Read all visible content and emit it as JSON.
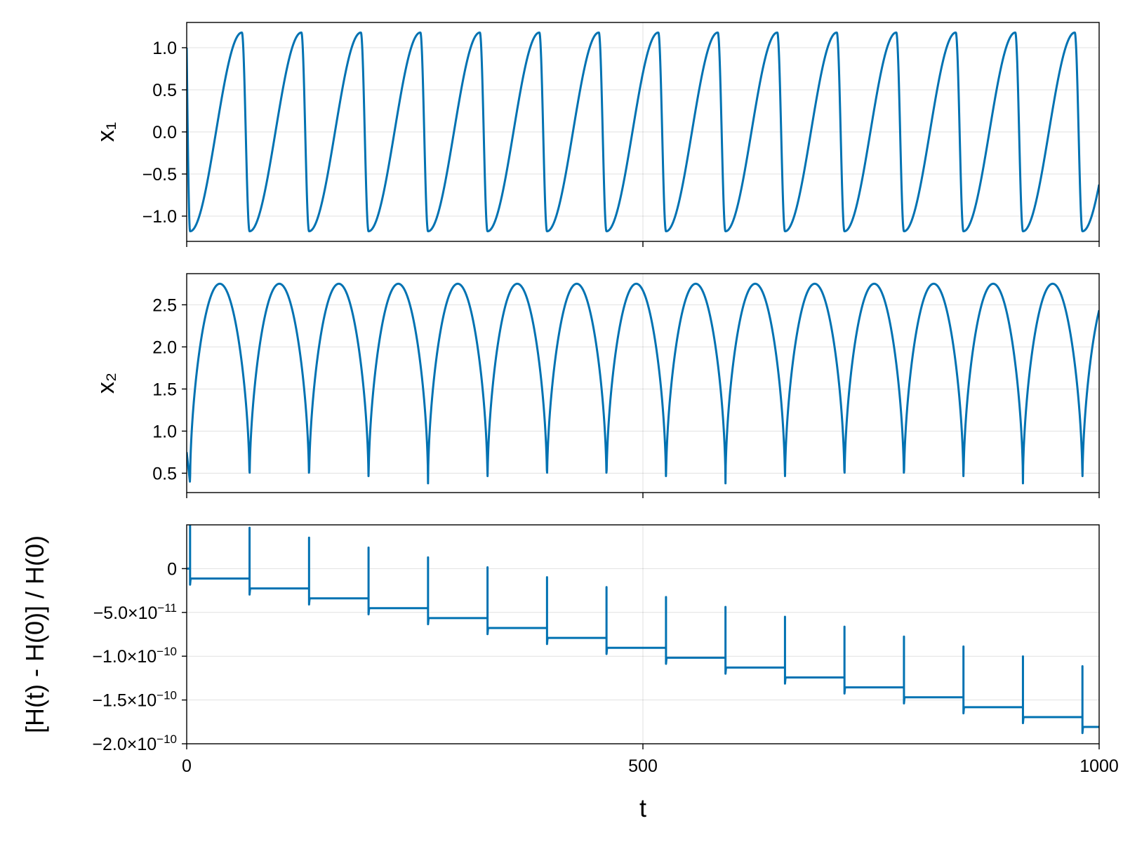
{
  "colors": {
    "series": "#0072b2"
  },
  "chart_data": [
    {
      "type": "line",
      "panel": "top",
      "ylabel": "x₁",
      "xlim": [
        0,
        1000
      ],
      "ylim": [
        -1.3,
        1.3
      ],
      "yticks": [
        1.0,
        0.5,
        0.0,
        -0.5,
        -1.0
      ],
      "ytick_labels": [
        "1.0",
        "0.5",
        "0.0",
        "−0.5",
        "−1.0"
      ],
      "xticks": [
        0,
        500,
        1000
      ],
      "show_xtick_labels": false,
      "grid": true,
      "series": [
        {
          "kind": "relaxation",
          "period": 65.2,
          "peak_offset": 60.5,
          "trough_offset": 3.7,
          "amplitude": 1.18,
          "start_value": 1.0,
          "t_end": 1000,
          "end_value": -0.35
        }
      ]
    },
    {
      "type": "line",
      "panel": "middle",
      "ylabel": "x₂",
      "xlim": [
        0,
        1000
      ],
      "ylim": [
        0.27,
        2.87
      ],
      "yticks": [
        2.5,
        2.0,
        1.5,
        1.0,
        0.5
      ],
      "ytick_labels": [
        "2.5",
        "2.0",
        "1.5",
        "1.0",
        "0.5"
      ],
      "xticks": [
        0,
        500,
        1000
      ],
      "show_xtick_labels": false,
      "grid": true,
      "series": [
        {
          "kind": "arches",
          "period": 65.2,
          "first_min": 3.7,
          "min_value": 0.38,
          "max_value": 2.75,
          "start_value": 0.75,
          "t_end": 1000,
          "end_value": 2.68
        }
      ]
    },
    {
      "type": "line",
      "panel": "bottom",
      "xlabel": "t",
      "ylabel": "[H(t) - H(0)] / H(0)",
      "xlim": [
        0,
        1000
      ],
      "ylim": [
        -2e-10,
        5e-11
      ],
      "yticks": [
        0,
        -5e-11,
        -1e-10,
        -1.5e-10,
        -2e-10
      ],
      "ytick_labels": [
        {
          "base": "0",
          "exp": ""
        },
        {
          "base": "−5.0×10",
          "exp": "−11"
        },
        {
          "base": "−1.0×10",
          "exp": "−10"
        },
        {
          "base": "−1.5×10",
          "exp": "−10"
        },
        {
          "base": "−2.0×10",
          "exp": "−10"
        }
      ],
      "xticks": [
        0,
        500,
        1000
      ],
      "xtick_labels": [
        "0",
        "500",
        "1000"
      ],
      "grid": true,
      "series": [
        {
          "kind": "steps",
          "period": 65.2,
          "first_jump": 3.7,
          "step": -1.13e-11,
          "spike_up": 5.8e-11,
          "spike_down": -7e-12,
          "t_end": 1000
        }
      ]
    }
  ]
}
